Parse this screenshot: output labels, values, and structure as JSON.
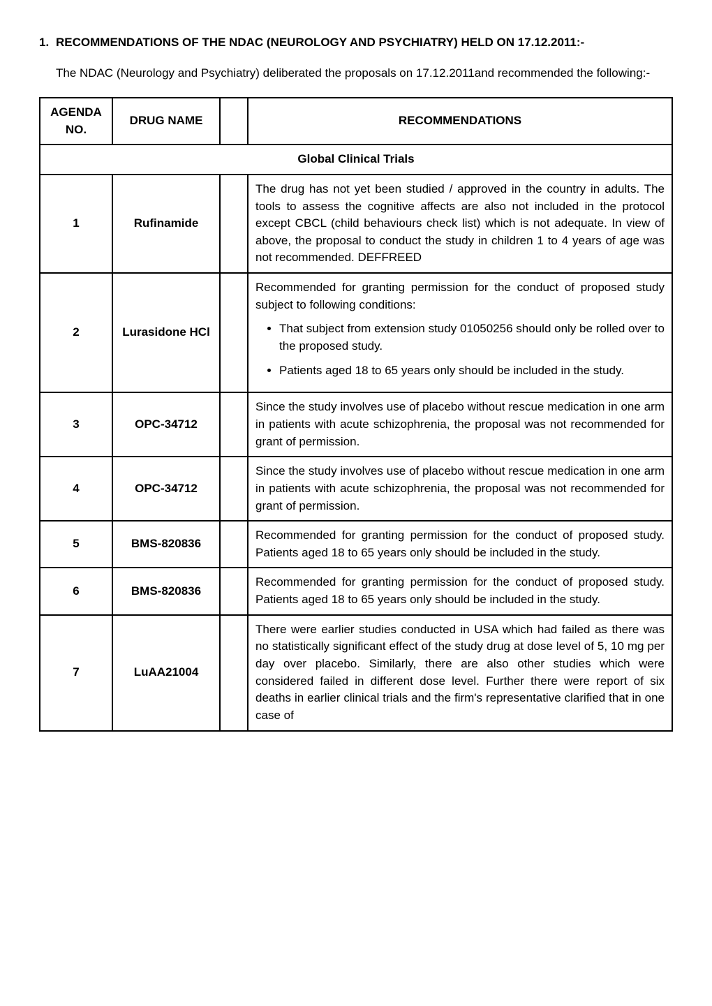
{
  "heading": {
    "number": "1.",
    "text": "RECOMMENDATIONS OF THE NDAC (NEUROLOGY AND PSYCHIATRY) HELD ON 17.12.2011:-"
  },
  "intro": "The NDAC (Neurology and Psychiatry) deliberated the proposals on 17.12.2011and recommended the following:-",
  "table": {
    "headers": {
      "col1_line1": "AGENDA",
      "col1_line2": "NO.",
      "col2": "DRUG NAME",
      "col3": "",
      "col4": "RECOMMENDATIONS"
    },
    "section_title": "Global Clinical Trials",
    "rows": [
      {
        "no": "1",
        "drug": "Rufinamide",
        "rec": "The drug has not yet been studied / approved in the country in adults.  The tools to assess the cognitive affects are also not included in the protocol except CBCL (child behaviours check list) which is not adequate.  In view of above, the proposal to conduct the study in children 1 to 4 years of age was not recommended.  DEFFREED"
      },
      {
        "no": "2",
        "drug": "Lurasidone HCl",
        "rec_intro": "Recommended for granting permission for the conduct of proposed study subject to following conditions:",
        "bullets": [
          "That subject from extension study 01050256 should only be rolled over to the proposed study.",
          "Patients aged 18 to 65 years only should be included in the study."
        ]
      },
      {
        "no": "3",
        "drug": "OPC-34712",
        "rec": "Since the study involves use of placebo without rescue medication in one arm in patients with acute schizophrenia, the proposal was not recommended for grant of permission."
      },
      {
        "no": "4",
        "drug": "OPC-34712",
        "rec": "Since the study involves use of placebo without rescue medication in one arm in patients with acute schizophrenia, the proposal was not recommended for grant of permission."
      },
      {
        "no": "5",
        "drug": "BMS-820836",
        "rec": "Recommended for granting permission for the conduct of proposed study.   Patients aged 18 to 65 years only should be included in the study."
      },
      {
        "no": "6",
        "drug": "BMS-820836",
        "rec": "Recommended for granting permission for the conduct of proposed study.   Patients aged 18 to 65 years only should be included in the study."
      },
      {
        "no": "7",
        "drug": "LuAA21004",
        "rec": "There were earlier studies conducted in USA which had failed as there was no statistically significant effect of the study drug at dose level of 5, 10 mg per day over placebo. Similarly, there are also other studies which were considered failed in different dose level.  Further there were report of six deaths in earlier clinical trials and the firm's representative clarified that in one case of"
      }
    ]
  }
}
